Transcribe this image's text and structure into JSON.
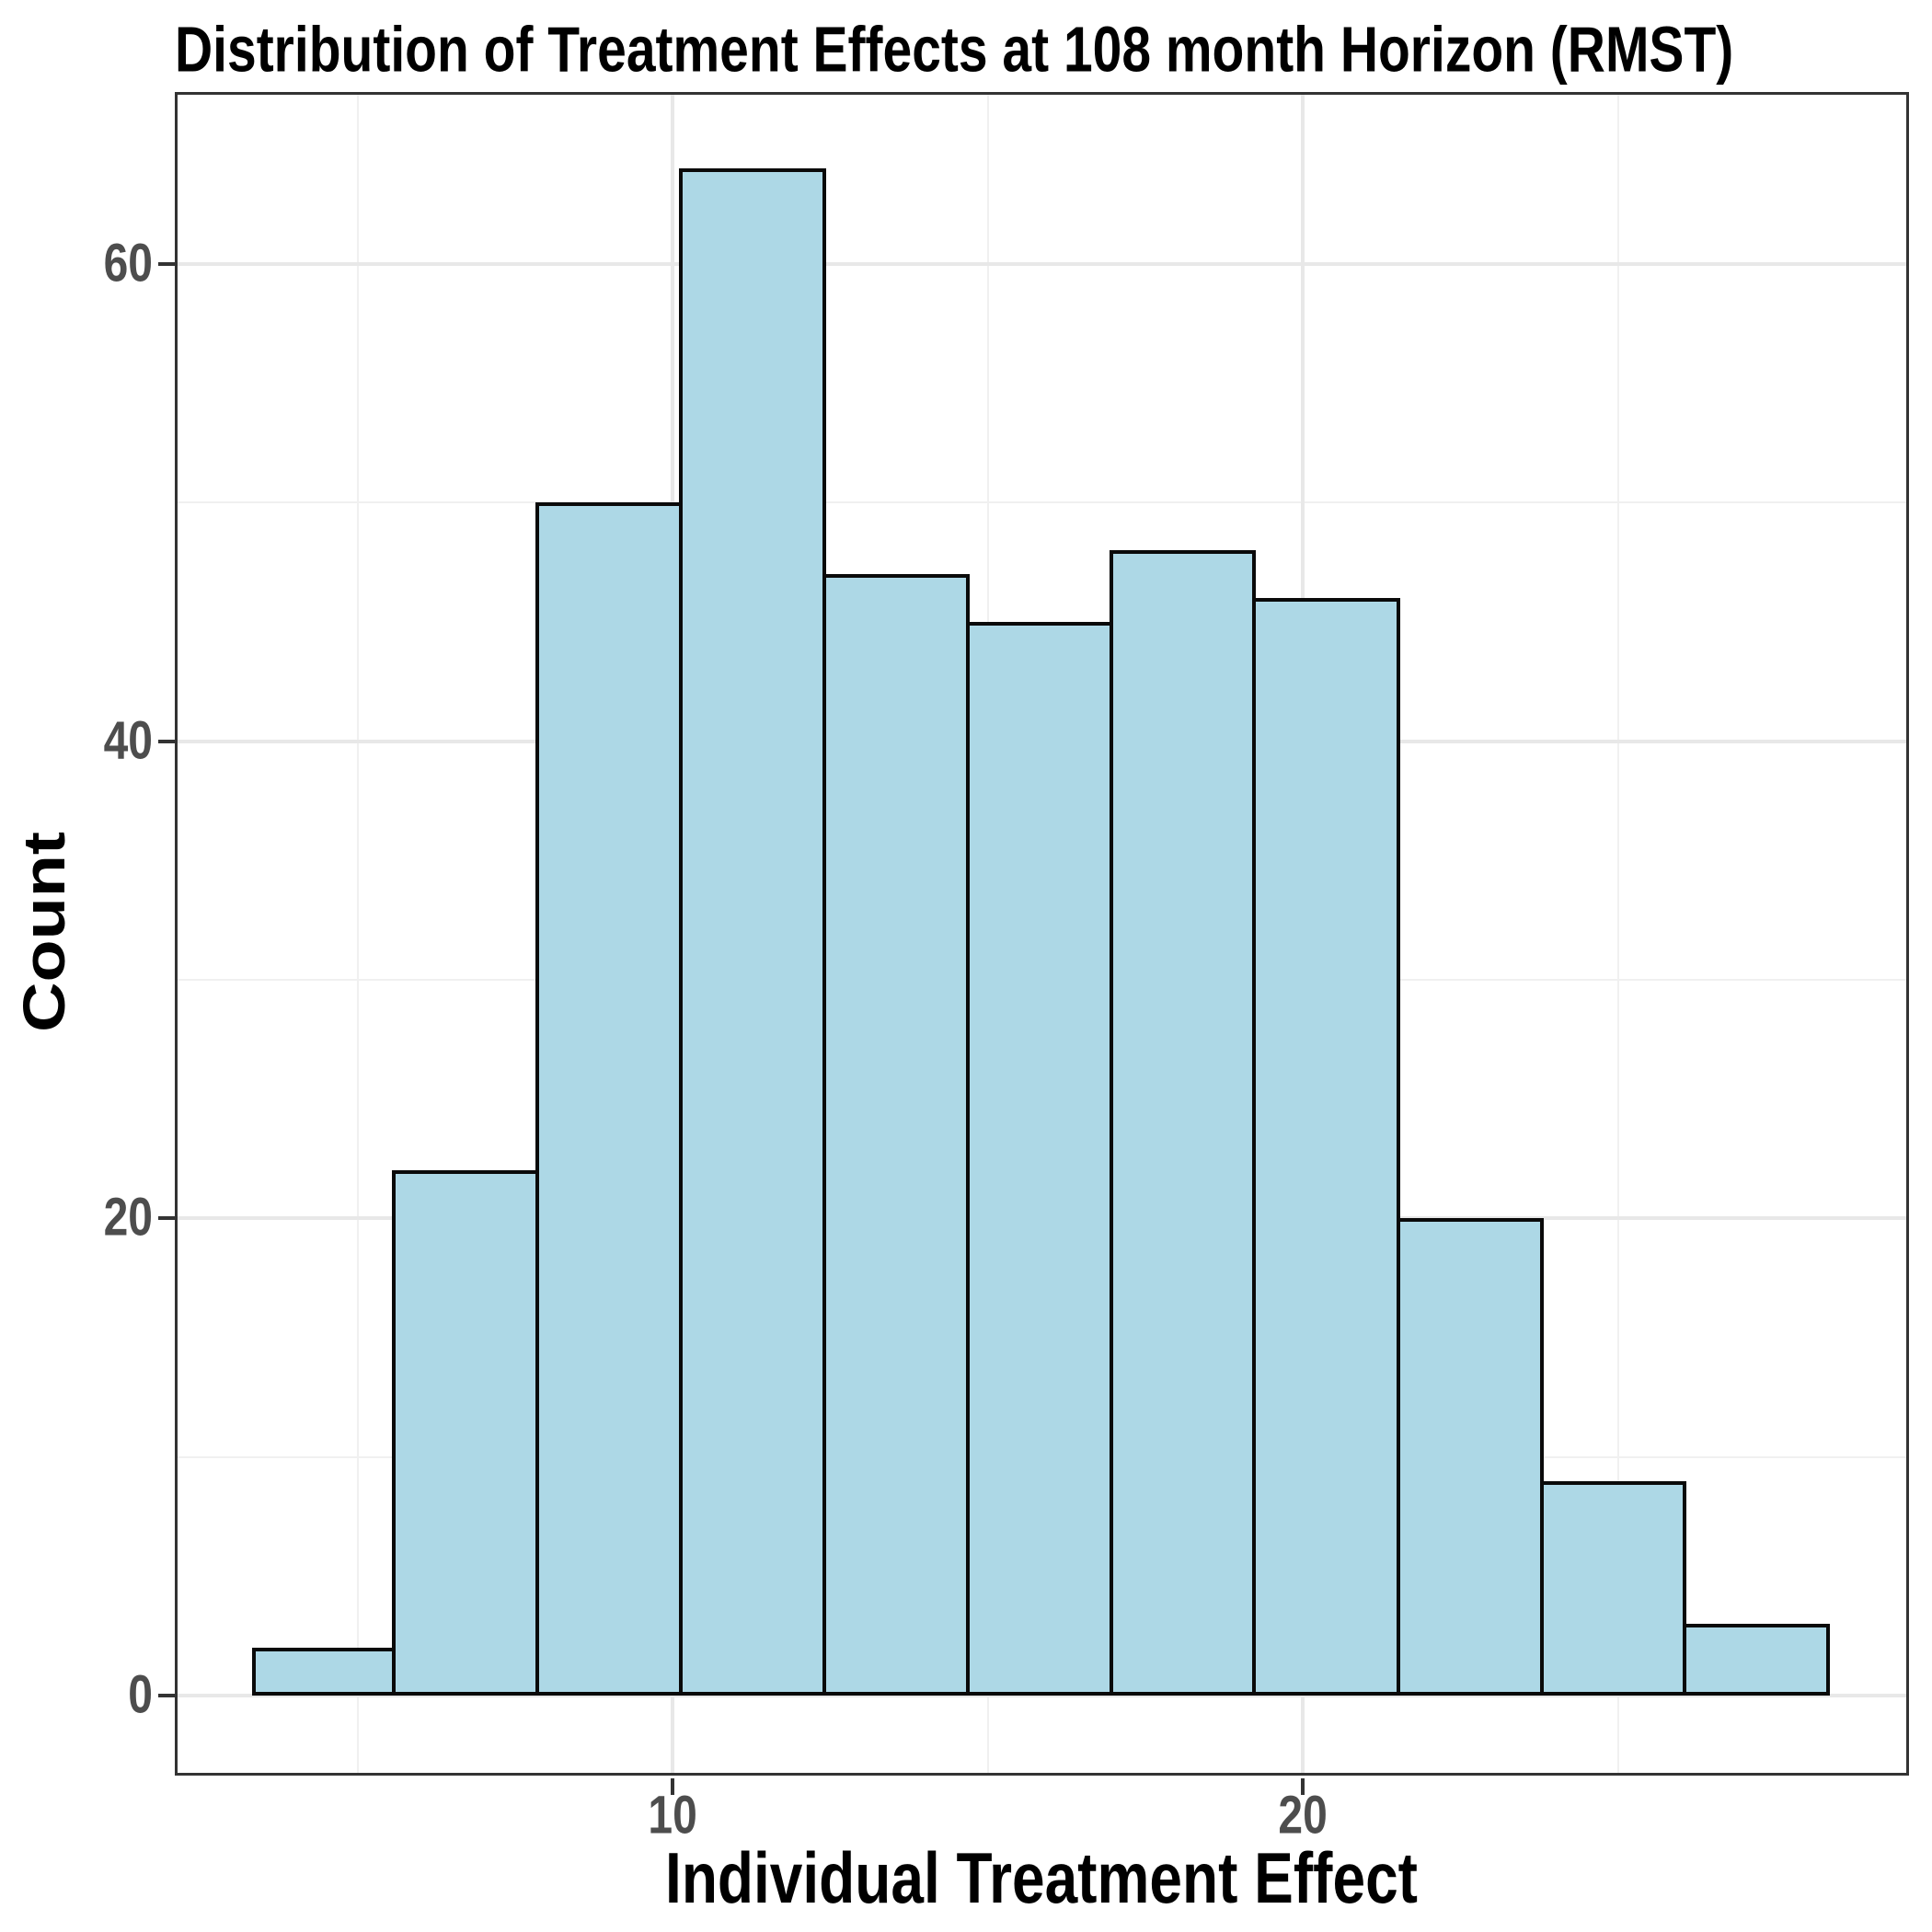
{
  "chart_data": {
    "type": "bar",
    "subtype": "histogram",
    "title": "Distribution of Treatment Effects at 108 month Horizon (RMST)",
    "xlabel": "Individual Treatment Effect",
    "ylabel": "Count",
    "bin_edges": [
      3.33,
      5.6,
      7.88,
      10.16,
      12.43,
      14.71,
      16.99,
      19.26,
      21.54,
      23.82,
      26.09,
      28.37
    ],
    "counts": [
      2,
      22,
      50,
      64,
      47,
      45,
      48,
      46,
      20,
      9,
      3
    ],
    "x_ticks": [
      10,
      20
    ],
    "y_ticks": [
      0,
      20,
      40,
      60
    ],
    "x_minor_gridlines": [
      5,
      15,
      25
    ],
    "y_minor_gridlines": [
      10,
      30,
      50
    ],
    "xlim": [
      2.1,
      29.62
    ],
    "ylim": [
      -3.36,
      67.22
    ],
    "grid": true,
    "legend_position": "none",
    "colors": {
      "bar_fill": "#ADD8E6",
      "bar_stroke": "#0A0A0A",
      "grid_major": "#E8E8E8",
      "grid_minor": "#F0F0F0",
      "panel_border": "#333333",
      "tick_mark": "#333333",
      "tick_label": "#4D4D4D",
      "title_color": "#000000",
      "background": "#FFFFFF"
    }
  }
}
